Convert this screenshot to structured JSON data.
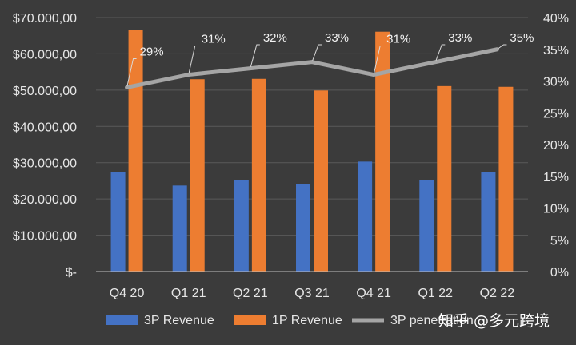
{
  "chart_data": {
    "type": "bar",
    "categories": [
      "Q4 20",
      "Q1 21",
      "Q2 21",
      "Q3 21",
      "Q4 21",
      "Q1 22",
      "Q2 22"
    ],
    "series": [
      {
        "name": "3P Revenue",
        "type": "bar",
        "axis": "left",
        "color": "#4472c4",
        "values": [
          27400,
          23700,
          25100,
          24100,
          30300,
          25300,
          27400
        ]
      },
      {
        "name": "1P Revenue",
        "type": "bar",
        "axis": "left",
        "color": "#ed7d31",
        "values": [
          66500,
          53000,
          53100,
          49900,
          66100,
          51100,
          50900
        ]
      },
      {
        "name": "3P penetration",
        "type": "line",
        "axis": "right",
        "color": "#a5a5a5",
        "values": [
          0.29,
          0.31,
          0.32,
          0.33,
          0.31,
          0.33,
          0.35
        ],
        "labels": [
          "29%",
          "31%",
          "32%",
          "33%",
          "31%",
          "33%",
          "35%"
        ]
      }
    ],
    "y_left": {
      "range": [
        0,
        70000
      ],
      "ticks": [
        0,
        10000,
        20000,
        30000,
        40000,
        50000,
        60000,
        70000
      ],
      "tick_labels": [
        "$-",
        "$10.000,00",
        "$20.000,00",
        "$30.000,00",
        "$40.000,00",
        "$50.000,00",
        "$60.000,00",
        "$70.000,00"
      ]
    },
    "y_right": {
      "range": [
        0,
        0.4
      ],
      "ticks": [
        0,
        0.05,
        0.1,
        0.15,
        0.2,
        0.25,
        0.3,
        0.35,
        0.4
      ],
      "tick_labels": [
        "0%",
        "5%",
        "10%",
        "15%",
        "20%",
        "25%",
        "30%",
        "35%",
        "40%"
      ]
    },
    "grid": "horizontal",
    "legend": "bottom",
    "title": ""
  },
  "watermark": "知乎 @多元跨境"
}
